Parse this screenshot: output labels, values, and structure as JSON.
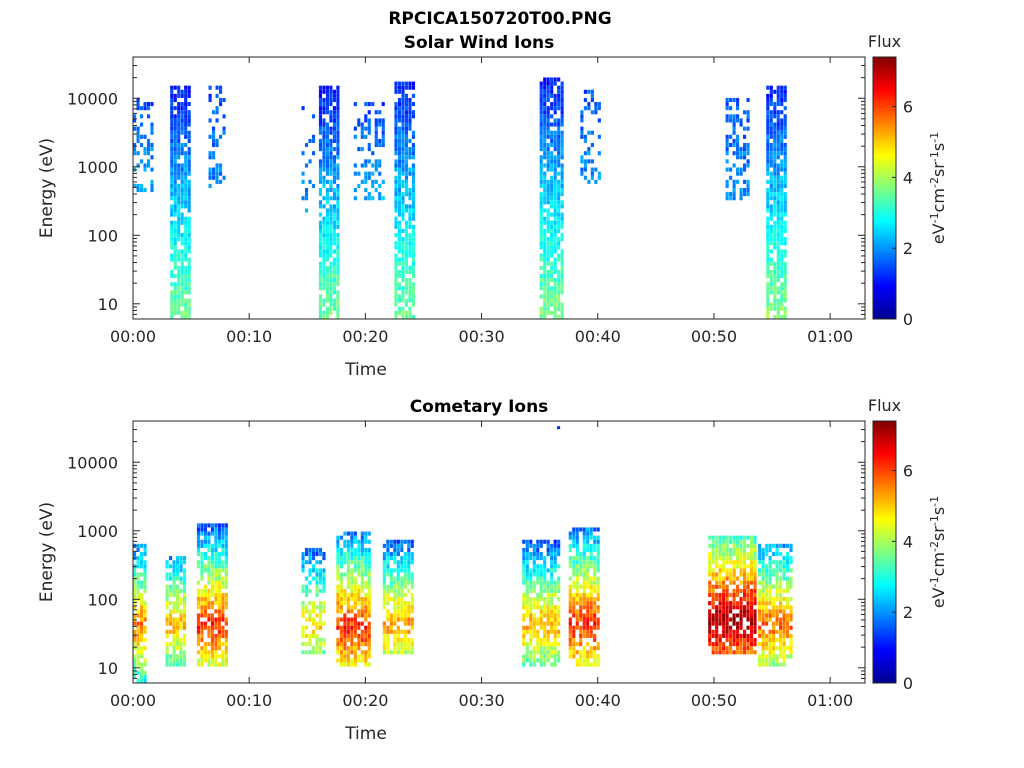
{
  "figure": {
    "title": "RPCICA150720T00.PNG"
  },
  "colormap": {
    "name": "jet",
    "stops": [
      "#00008f",
      "#0000ff",
      "#0080ff",
      "#00ffff",
      "#80ff80",
      "#ffff00",
      "#ff8000",
      "#ff0000",
      "#800000"
    ]
  },
  "chart_data": [
    {
      "type": "heatmap",
      "title": "Solar Wind Ions",
      "xlabel": "Time",
      "ylabel": "Energy (eV)",
      "x_ticks": [
        "00:00",
        "00:10",
        "00:20",
        "00:30",
        "00:40",
        "00:50",
        "01:00"
      ],
      "xlim_minutes": [
        0,
        63
      ],
      "y_scale": "log",
      "y_ticks": [
        10,
        100,
        1000,
        10000
      ],
      "y_tick_labels": [
        "10",
        "100",
        "1000",
        "10000"
      ],
      "ylim": [
        6,
        40000
      ],
      "colorbar": {
        "label": "Flux",
        "unit_label": "eV-1cm-2sr-1s-1",
        "range": [
          0,
          7.4
        ],
        "ticks": [
          0,
          2,
          4,
          6
        ],
        "tick_labels": [
          "0",
          "2",
          "4",
          "6"
        ]
      },
      "bursts": [
        {
          "t_start": 0.0,
          "t_end": 1.8,
          "e_min": 400,
          "e_max": 10000,
          "flux_low": 2.2,
          "flux_high": 1.4,
          "density": 0.4
        },
        {
          "t_start": 3.2,
          "t_end": 4.8,
          "e_min": 6,
          "e_max": 14000,
          "flux_low": 3.6,
          "flux_high": 1.1,
          "density": 0.85
        },
        {
          "t_start": 6.5,
          "t_end": 7.8,
          "e_min": 400,
          "e_max": 14000,
          "flux_low": 2.0,
          "flux_high": 1.4,
          "density": 0.4
        },
        {
          "t_start": 14.5,
          "t_end": 15.5,
          "e_min": 150,
          "e_max": 10000,
          "flux_low": 2.0,
          "flux_high": 1.5,
          "density": 0.15
        },
        {
          "t_start": 16.0,
          "t_end": 17.8,
          "e_min": 6,
          "e_max": 14000,
          "flux_low": 3.6,
          "flux_high": 1.1,
          "density": 0.85
        },
        {
          "t_start": 19.0,
          "t_end": 21.5,
          "e_min": 300,
          "e_max": 8000,
          "flux_low": 2.2,
          "flux_high": 1.4,
          "density": 0.4
        },
        {
          "t_start": 22.5,
          "t_end": 24.2,
          "e_min": 6,
          "e_max": 16000,
          "flux_low": 3.6,
          "flux_high": 1.1,
          "density": 0.85
        },
        {
          "t_start": 35.0,
          "t_end": 36.8,
          "e_min": 6,
          "e_max": 20000,
          "flux_low": 3.7,
          "flux_high": 1.1,
          "density": 0.85
        },
        {
          "t_start": 38.5,
          "t_end": 40.0,
          "e_min": 500,
          "e_max": 12000,
          "flux_low": 2.0,
          "flux_high": 1.5,
          "density": 0.4
        },
        {
          "t_start": 51.0,
          "t_end": 52.8,
          "e_min": 300,
          "e_max": 10000,
          "flux_low": 2.0,
          "flux_high": 1.5,
          "density": 0.4
        },
        {
          "t_start": 54.5,
          "t_end": 56.2,
          "e_min": 6,
          "e_max": 15000,
          "flux_low": 3.8,
          "flux_high": 1.1,
          "density": 0.85
        }
      ]
    },
    {
      "type": "heatmap",
      "title": "Cometary Ions",
      "xlabel": "Time",
      "ylabel": "Energy (eV)",
      "x_ticks": [
        "00:00",
        "00:10",
        "00:20",
        "00:30",
        "00:40",
        "00:50",
        "01:00"
      ],
      "xlim_minutes": [
        0,
        63
      ],
      "y_scale": "log",
      "y_ticks": [
        10,
        100,
        1000,
        10000
      ],
      "y_tick_labels": [
        "10",
        "100",
        "1000",
        "10000"
      ],
      "ylim": [
        6,
        40000
      ],
      "colorbar": {
        "label": "Flux",
        "unit_label": "eV-1cm-2sr-1s-1",
        "range": [
          0,
          7.4
        ],
        "ticks": [
          0,
          2,
          4,
          6
        ],
        "tick_labels": [
          "0",
          "2",
          "4",
          "6"
        ]
      },
      "bursts": [
        {
          "t_start": 0.0,
          "t_end": 1.2,
          "e_min": 6,
          "e_max": 600,
          "peak_energy": 40,
          "peak_flux": 5.6,
          "density": 0.8
        },
        {
          "t_start": 2.8,
          "t_end": 4.5,
          "e_min": 10,
          "e_max": 400,
          "peak_energy": 40,
          "peak_flux": 5.2,
          "density": 0.8
        },
        {
          "t_start": 5.5,
          "t_end": 8.0,
          "e_min": 10,
          "e_max": 1200,
          "peak_energy": 40,
          "peak_flux": 6.2,
          "density": 0.8
        },
        {
          "t_start": 14.5,
          "t_end": 16.5,
          "e_min": 15,
          "e_max": 500,
          "peak_energy": 40,
          "peak_flux": 5.0,
          "density": 0.7
        },
        {
          "t_start": 17.5,
          "t_end": 20.5,
          "e_min": 10,
          "e_max": 900,
          "peak_energy": 35,
          "peak_flux": 6.3,
          "density": 0.8
        },
        {
          "t_start": 21.5,
          "t_end": 24.0,
          "e_min": 15,
          "e_max": 700,
          "peak_energy": 40,
          "peak_flux": 5.5,
          "density": 0.8
        },
        {
          "t_start": 33.5,
          "t_end": 36.5,
          "e_min": 10,
          "e_max": 700,
          "peak_energy": 40,
          "peak_flux": 5.3,
          "density": 0.8
        },
        {
          "t_start": 37.5,
          "t_end": 40.0,
          "e_min": 10,
          "e_max": 1000,
          "peak_energy": 40,
          "peak_flux": 6.3,
          "density": 0.8
        },
        {
          "t_start": 49.5,
          "t_end": 53.5,
          "e_min": 15,
          "e_max": 800,
          "peak_energy": 45,
          "peak_flux": 7.2,
          "density": 0.85
        },
        {
          "t_start": 53.8,
          "t_end": 56.5,
          "e_min": 10,
          "e_max": 600,
          "peak_energy": 40,
          "peak_flux": 5.8,
          "density": 0.8
        }
      ],
      "outliers": [
        {
          "t": 36.5,
          "e": 32000,
          "flux": 1.2
        }
      ]
    }
  ]
}
